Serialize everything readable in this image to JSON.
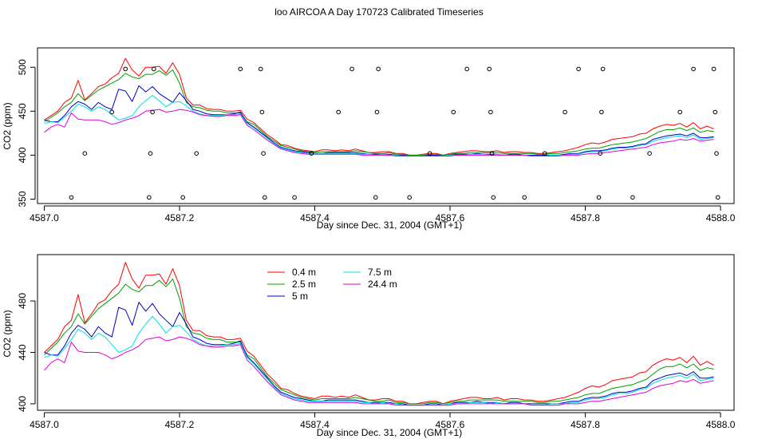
{
  "title": "loo AIRCOA A  Day 170723  Calibrated Timeseries",
  "chart_data": [
    {
      "type": "line",
      "xlabel": "Day since Dec. 31, 2004 (GMT+1)",
      "ylabel": "CO2 (ppm)",
      "xlim": [
        4586.99,
        4588.02
      ],
      "ylim": [
        345,
        522
      ],
      "xticks": [
        {
          "v": 4587.0,
          "label": "4587.0"
        },
        {
          "v": 4587.2,
          "label": "4587.2"
        },
        {
          "v": 4587.4,
          "label": "4587.4"
        },
        {
          "v": 4587.6,
          "label": "4587.6"
        },
        {
          "v": 4587.8,
          "label": "4587.8"
        },
        {
          "v": 4588.0,
          "label": "4588.0"
        }
      ],
      "yticks": [
        {
          "v": 350,
          "label": "350"
        },
        {
          "v": 400,
          "label": "400"
        },
        {
          "v": 450,
          "label": "450"
        },
        {
          "v": 500,
          "label": "500"
        }
      ],
      "markers": [
        {
          "x": 4587.04,
          "y": 352
        },
        {
          "x": 4587.06,
          "y": 402
        },
        {
          "x": 4587.1,
          "y": 449
        },
        {
          "x": 4587.12,
          "y": 498
        },
        {
          "x": 4587.155,
          "y": 352
        },
        {
          "x": 4587.157,
          "y": 402
        },
        {
          "x": 4587.16,
          "y": 449
        },
        {
          "x": 4587.162,
          "y": 498
        },
        {
          "x": 4587.205,
          "y": 352
        },
        {
          "x": 4587.225,
          "y": 402
        },
        {
          "x": 4587.29,
          "y": 498
        },
        {
          "x": 4587.32,
          "y": 498
        },
        {
          "x": 4587.322,
          "y": 449
        },
        {
          "x": 4587.324,
          "y": 402
        },
        {
          "x": 4587.326,
          "y": 352
        },
        {
          "x": 4587.37,
          "y": 352
        },
        {
          "x": 4587.395,
          "y": 402
        },
        {
          "x": 4587.435,
          "y": 449
        },
        {
          "x": 4587.455,
          "y": 498
        },
        {
          "x": 4587.49,
          "y": 352
        },
        {
          "x": 4587.492,
          "y": 449
        },
        {
          "x": 4587.494,
          "y": 498
        },
        {
          "x": 4587.54,
          "y": 352
        },
        {
          "x": 4587.57,
          "y": 402
        },
        {
          "x": 4587.605,
          "y": 449
        },
        {
          "x": 4587.625,
          "y": 498
        },
        {
          "x": 4587.658,
          "y": 498
        },
        {
          "x": 4587.66,
          "y": 449
        },
        {
          "x": 4587.662,
          "y": 402
        },
        {
          "x": 4587.664,
          "y": 352
        },
        {
          "x": 4587.71,
          "y": 352
        },
        {
          "x": 4587.74,
          "y": 402
        },
        {
          "x": 4587.77,
          "y": 449
        },
        {
          "x": 4587.79,
          "y": 498
        },
        {
          "x": 4587.82,
          "y": 352
        },
        {
          "x": 4587.822,
          "y": 402
        },
        {
          "x": 4587.824,
          "y": 449
        },
        {
          "x": 4587.826,
          "y": 498
        },
        {
          "x": 4587.87,
          "y": 352
        },
        {
          "x": 4587.895,
          "y": 402
        },
        {
          "x": 4587.94,
          "y": 449
        },
        {
          "x": 4587.96,
          "y": 498
        },
        {
          "x": 4587.99,
          "y": 498
        },
        {
          "x": 4587.992,
          "y": 449
        },
        {
          "x": 4587.994,
          "y": 402
        },
        {
          "x": 4587.996,
          "y": 352
        }
      ]
    },
    {
      "type": "line",
      "xlabel": "Day since Dec. 31, 2004 (GMT+1)",
      "ylabel": "CO2 (ppm)",
      "xlim": [
        4586.99,
        4588.02
      ],
      "ylim": [
        395,
        516
      ],
      "xticks": [
        {
          "v": 4587.0,
          "label": "4587.0"
        },
        {
          "v": 4587.2,
          "label": "4587.2"
        },
        {
          "v": 4587.4,
          "label": "4587.4"
        },
        {
          "v": 4587.6,
          "label": "4587.6"
        },
        {
          "v": 4587.8,
          "label": "4587.8"
        },
        {
          "v": 4588.0,
          "label": "4588.0"
        }
      ],
      "yticks": [
        {
          "v": 400,
          "label": "400"
        },
        {
          "v": 440,
          "label": "440"
        },
        {
          "v": 480,
          "label": "480"
        }
      ]
    }
  ],
  "shared": {
    "x": [
      4587.0,
      4587.01,
      4587.02,
      4587.03,
      4587.04,
      4587.05,
      4587.06,
      4587.07,
      4587.08,
      4587.09,
      4587.1,
      4587.11,
      4587.12,
      4587.13,
      4587.14,
      4587.15,
      4587.16,
      4587.17,
      4587.18,
      4587.19,
      4587.2,
      4587.21,
      4587.22,
      4587.23,
      4587.24,
      4587.25,
      4587.26,
      4587.27,
      4587.28,
      4587.29,
      4587.3,
      4587.31,
      4587.32,
      4587.33,
      4587.34,
      4587.35,
      4587.36,
      4587.37,
      4587.38,
      4587.39,
      4587.4,
      4587.41,
      4587.42,
      4587.43,
      4587.44,
      4587.45,
      4587.46,
      4587.47,
      4587.48,
      4587.49,
      4587.5,
      4587.51,
      4587.52,
      4587.53,
      4587.54,
      4587.55,
      4587.56,
      4587.57,
      4587.58,
      4587.59,
      4587.6,
      4587.61,
      4587.62,
      4587.63,
      4587.64,
      4587.65,
      4587.66,
      4587.67,
      4587.68,
      4587.69,
      4587.7,
      4587.71,
      4587.72,
      4587.73,
      4587.74,
      4587.75,
      4587.76,
      4587.77,
      4587.78,
      4587.79,
      4587.8,
      4587.81,
      4587.82,
      4587.83,
      4587.84,
      4587.85,
      4587.86,
      4587.87,
      4587.88,
      4587.89,
      4587.9,
      4587.91,
      4587.92,
      4587.93,
      4587.94,
      4587.95,
      4587.96,
      4587.97,
      4587.98,
      4587.99
    ],
    "series": [
      {
        "name": "0.4 m",
        "color": "#ff0000",
        "values": [
          440,
          445,
          450,
          460,
          465,
          485,
          463,
          470,
          478,
          481,
          488,
          493,
          510,
          497,
          490,
          500,
          500,
          501,
          493,
          505,
          492,
          465,
          457,
          457,
          453,
          452,
          452,
          450,
          450,
          451,
          441,
          437,
          430,
          423,
          418,
          412,
          411,
          408,
          406,
          405,
          404,
          406,
          406,
          405,
          406,
          405,
          407,
          405,
          403,
          403,
          404,
          404,
          402,
          402,
          400,
          400,
          401,
          402,
          402,
          400,
          402,
          403,
          404,
          405,
          405,
          404,
          404,
          405,
          403,
          404,
          404,
          403,
          403,
          402,
          402,
          403,
          404,
          405,
          407,
          409,
          412,
          414,
          413,
          415,
          418,
          419,
          420,
          421,
          424,
          425,
          430,
          433,
          435,
          434,
          436,
          432,
          437,
          430,
          433,
          430
        ]
      },
      {
        "name": "2.5 m",
        "color": "#00a000",
        "values": [
          438,
          443,
          448,
          455,
          460,
          470,
          462,
          468,
          474,
          478,
          482,
          486,
          493,
          489,
          487,
          492,
          492,
          496,
          491,
          497,
          482,
          460,
          455,
          454,
          451,
          450,
          450,
          448,
          448,
          448,
          438,
          435,
          428,
          421,
          416,
          411,
          409,
          407,
          405,
          404,
          403,
          404,
          404,
          404,
          404,
          404,
          405,
          404,
          403,
          402,
          402,
          403,
          401,
          401,
          400,
          400,
          400,
          401,
          401,
          400,
          401,
          402,
          402,
          403,
          403,
          403,
          403,
          403,
          402,
          402,
          402,
          402,
          402,
          401,
          401,
          402,
          402,
          403,
          404,
          405,
          407,
          408,
          408,
          410,
          412,
          413,
          414,
          415,
          417,
          419,
          423,
          427,
          429,
          429,
          431,
          428,
          431,
          426,
          428,
          427
        ]
      },
      {
        "name": "5 m",
        "color": "#0000c8",
        "values": [
          440,
          438,
          438,
          445,
          455,
          461,
          458,
          452,
          460,
          455,
          452,
          475,
          473,
          461,
          479,
          472,
          478,
          470,
          465,
          460,
          471,
          462,
          452,
          450,
          447,
          446,
          446,
          446,
          447,
          449,
          437,
          432,
          426,
          420,
          414,
          409,
          407,
          405,
          404,
          403,
          402,
          402,
          403,
          403,
          403,
          403,
          403,
          402,
          401,
          401,
          401,
          401,
          400,
          400,
          399,
          399,
          399,
          400,
          400,
          399,
          400,
          401,
          401,
          401,
          402,
          401,
          401,
          401,
          400,
          401,
          401,
          400,
          400,
          400,
          400,
          400,
          400,
          401,
          402,
          402,
          404,
          405,
          405,
          406,
          408,
          409,
          409,
          410,
          412,
          413,
          418,
          420,
          422,
          423,
          424,
          422,
          425,
          420,
          420,
          421
        ]
      },
      {
        "name": "7.5 m",
        "color": "#00e0e0",
        "values": [
          436,
          438,
          437,
          443,
          450,
          458,
          455,
          450,
          455,
          452,
          446,
          440,
          442,
          445,
          455,
          462,
          468,
          462,
          455,
          460,
          461,
          456,
          450,
          447,
          445,
          445,
          445,
          446,
          446,
          447,
          436,
          431,
          425,
          419,
          413,
          408,
          406,
          404,
          403,
          402,
          402,
          402,
          402,
          402,
          402,
          402,
          402,
          401,
          401,
          400,
          401,
          400,
          400,
          399,
          399,
          399,
          399,
          399,
          399,
          399,
          400,
          400,
          400,
          401,
          401,
          401,
          400,
          401,
          400,
          400,
          400,
          400,
          399,
          399,
          399,
          400,
          400,
          400,
          401,
          401,
          403,
          404,
          404,
          405,
          407,
          408,
          408,
          409,
          411,
          412,
          416,
          418,
          420,
          421,
          422,
          420,
          423,
          418,
          419,
          420
        ]
      },
      {
        "name": "24.4 m",
        "color": "#e000e0",
        "values": [
          426,
          432,
          435,
          432,
          448,
          441,
          440,
          440,
          440,
          438,
          435,
          437,
          440,
          442,
          445,
          450,
          451,
          452,
          449,
          450,
          452,
          451,
          449,
          446,
          445,
          444,
          444,
          445,
          445,
          446,
          434,
          429,
          423,
          417,
          412,
          407,
          405,
          403,
          402,
          401,
          401,
          401,
          401,
          401,
          401,
          401,
          401,
          400,
          400,
          400,
          400,
          400,
          399,
          399,
          399,
          399,
          399,
          399,
          399,
          399,
          399,
          400,
          400,
          400,
          400,
          400,
          400,
          400,
          400,
          400,
          400,
          400,
          399,
          399,
          399,
          399,
          399,
          400,
          400,
          400,
          401,
          402,
          402,
          403,
          404,
          405,
          406,
          407,
          408,
          409,
          412,
          414,
          415,
          416,
          418,
          417,
          419,
          416,
          417,
          418
        ]
      }
    ]
  }
}
